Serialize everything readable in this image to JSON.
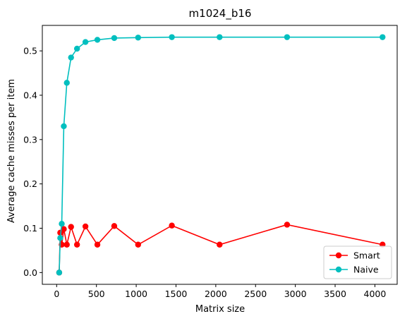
{
  "chart_data": {
    "type": "line",
    "title": "m1024_b16",
    "xlabel": "Matrix size",
    "ylabel": "Average cache misses per item",
    "xlim": [
      -180,
      4280
    ],
    "ylim": [
      -0.0265,
      0.5575
    ],
    "xticks": [
      0,
      500,
      1000,
      1500,
      2000,
      2500,
      3000,
      3500,
      4000
    ],
    "xtick_labels": [
      "0",
      "500",
      "1000",
      "1500",
      "2000",
      "2500",
      "3000",
      "3500",
      "4000"
    ],
    "yticks": [
      0.0,
      0.1,
      0.2,
      0.3,
      0.4,
      0.5
    ],
    "ytick_labels": [
      "0.0",
      "0.1",
      "0.2",
      "0.3",
      "0.4",
      "0.5"
    ],
    "grid": false,
    "legend_position": "lower-right",
    "series": [
      {
        "name": "Smart",
        "color": "#ff0000",
        "x": [
          32,
          45,
          64,
          90,
          128,
          181,
          256,
          362,
          512,
          724,
          1024,
          1448,
          2048,
          2896,
          4096
        ],
        "y": [
          0.0,
          0.09,
          0.063,
          0.098,
          0.063,
          0.103,
          0.063,
          0.104,
          0.063,
          0.105,
          0.063,
          0.106,
          0.063,
          0.108,
          0.063
        ]
      },
      {
        "name": "Naive",
        "color": "#00bfbf",
        "x": [
          32,
          45,
          64,
          90,
          128,
          181,
          256,
          362,
          512,
          724,
          1024,
          1448,
          2048,
          2896,
          4096
        ],
        "y": [
          0.0,
          0.078,
          0.11,
          0.33,
          0.428,
          0.485,
          0.505,
          0.52,
          0.525,
          0.529,
          0.53,
          0.531,
          0.531,
          0.531,
          0.531
        ]
      }
    ]
  }
}
